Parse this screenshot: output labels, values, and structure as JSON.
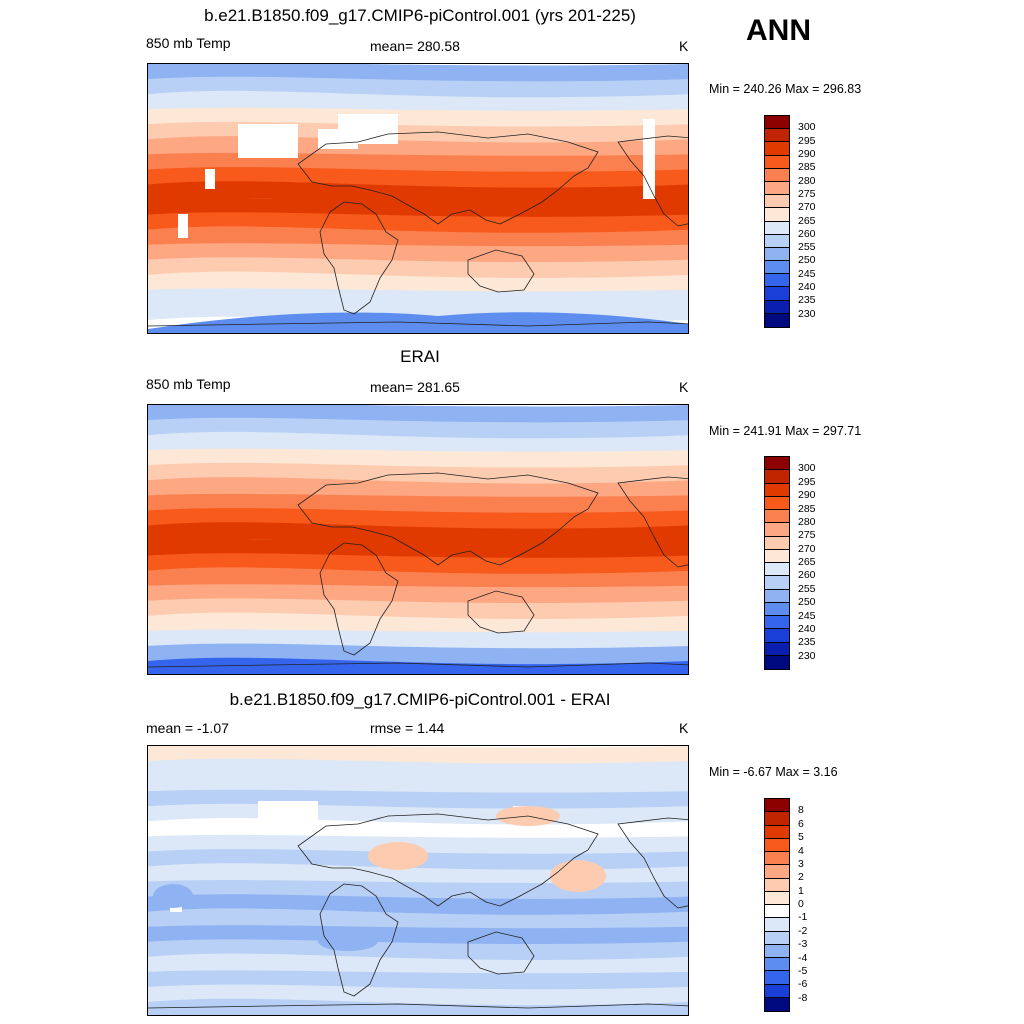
{
  "season_label": "ANN",
  "panels": [
    {
      "title": "b.e21.B1850.f09_g17.CMIP6-piControl.001 (yrs 201-225)",
      "left_label": "850 mb Temp",
      "center_label": "mean= 280.58",
      "units": "K",
      "minmax": "Min = 240.26 Max = 296.83",
      "kind": "model",
      "colorbar": {
        "labels": [
          "300",
          "295",
          "290",
          "285",
          "280",
          "275",
          "270",
          "265",
          "260",
          "255",
          "250",
          "245",
          "240",
          "235",
          "230"
        ],
        "colors": [
          "#8c0000",
          "#c02500",
          "#e13a00",
          "#f75a1a",
          "#fb8050",
          "#fda783",
          "#fdcbb0",
          "#fde7d6",
          "#dce8f7",
          "#b8d0f5",
          "#8fb3f2",
          "#5e8df0",
          "#3565ec",
          "#1a3ed8",
          "#0a1fb0",
          "#000a80"
        ]
      }
    },
    {
      "title": "ERAI",
      "left_label": "850 mb Temp",
      "center_label": "mean= 281.65",
      "units": "K",
      "minmax": "Min = 241.91 Max = 297.71",
      "kind": "obs",
      "colorbar": {
        "labels": [
          "300",
          "295",
          "290",
          "285",
          "280",
          "275",
          "270",
          "265",
          "260",
          "255",
          "250",
          "245",
          "240",
          "235",
          "230"
        ],
        "colors": [
          "#8c0000",
          "#c02500",
          "#e13a00",
          "#f75a1a",
          "#fb8050",
          "#fda783",
          "#fdcbb0",
          "#fde7d6",
          "#dce8f7",
          "#b8d0f5",
          "#8fb3f2",
          "#5e8df0",
          "#3565ec",
          "#1a3ed8",
          "#0a1fb0",
          "#000a80"
        ]
      }
    },
    {
      "title": "b.e21.B1850.f09_g17.CMIP6-piControl.001 - ERAI",
      "left_label": "mean =  -1.07",
      "center_label": "rmse =   1.44",
      "units": "K",
      "minmax": "Min =  -6.67 Max =   3.16",
      "kind": "diff",
      "colorbar": {
        "labels": [
          "8",
          "6",
          "5",
          "4",
          "3",
          "2",
          "1",
          "0",
          "-1",
          "-2",
          "-3",
          "-4",
          "-5",
          "-6",
          "-8"
        ],
        "colors": [
          "#8c0000",
          "#c02500",
          "#e13a00",
          "#f75a1a",
          "#fb8050",
          "#fda783",
          "#fdcbb0",
          "#fde7d6",
          "#ffffff",
          "#dce8f7",
          "#b8d0f5",
          "#8fb3f2",
          "#5e8df0",
          "#3565ec",
          "#1a3ed8",
          "#000a80"
        ]
      }
    }
  ]
}
